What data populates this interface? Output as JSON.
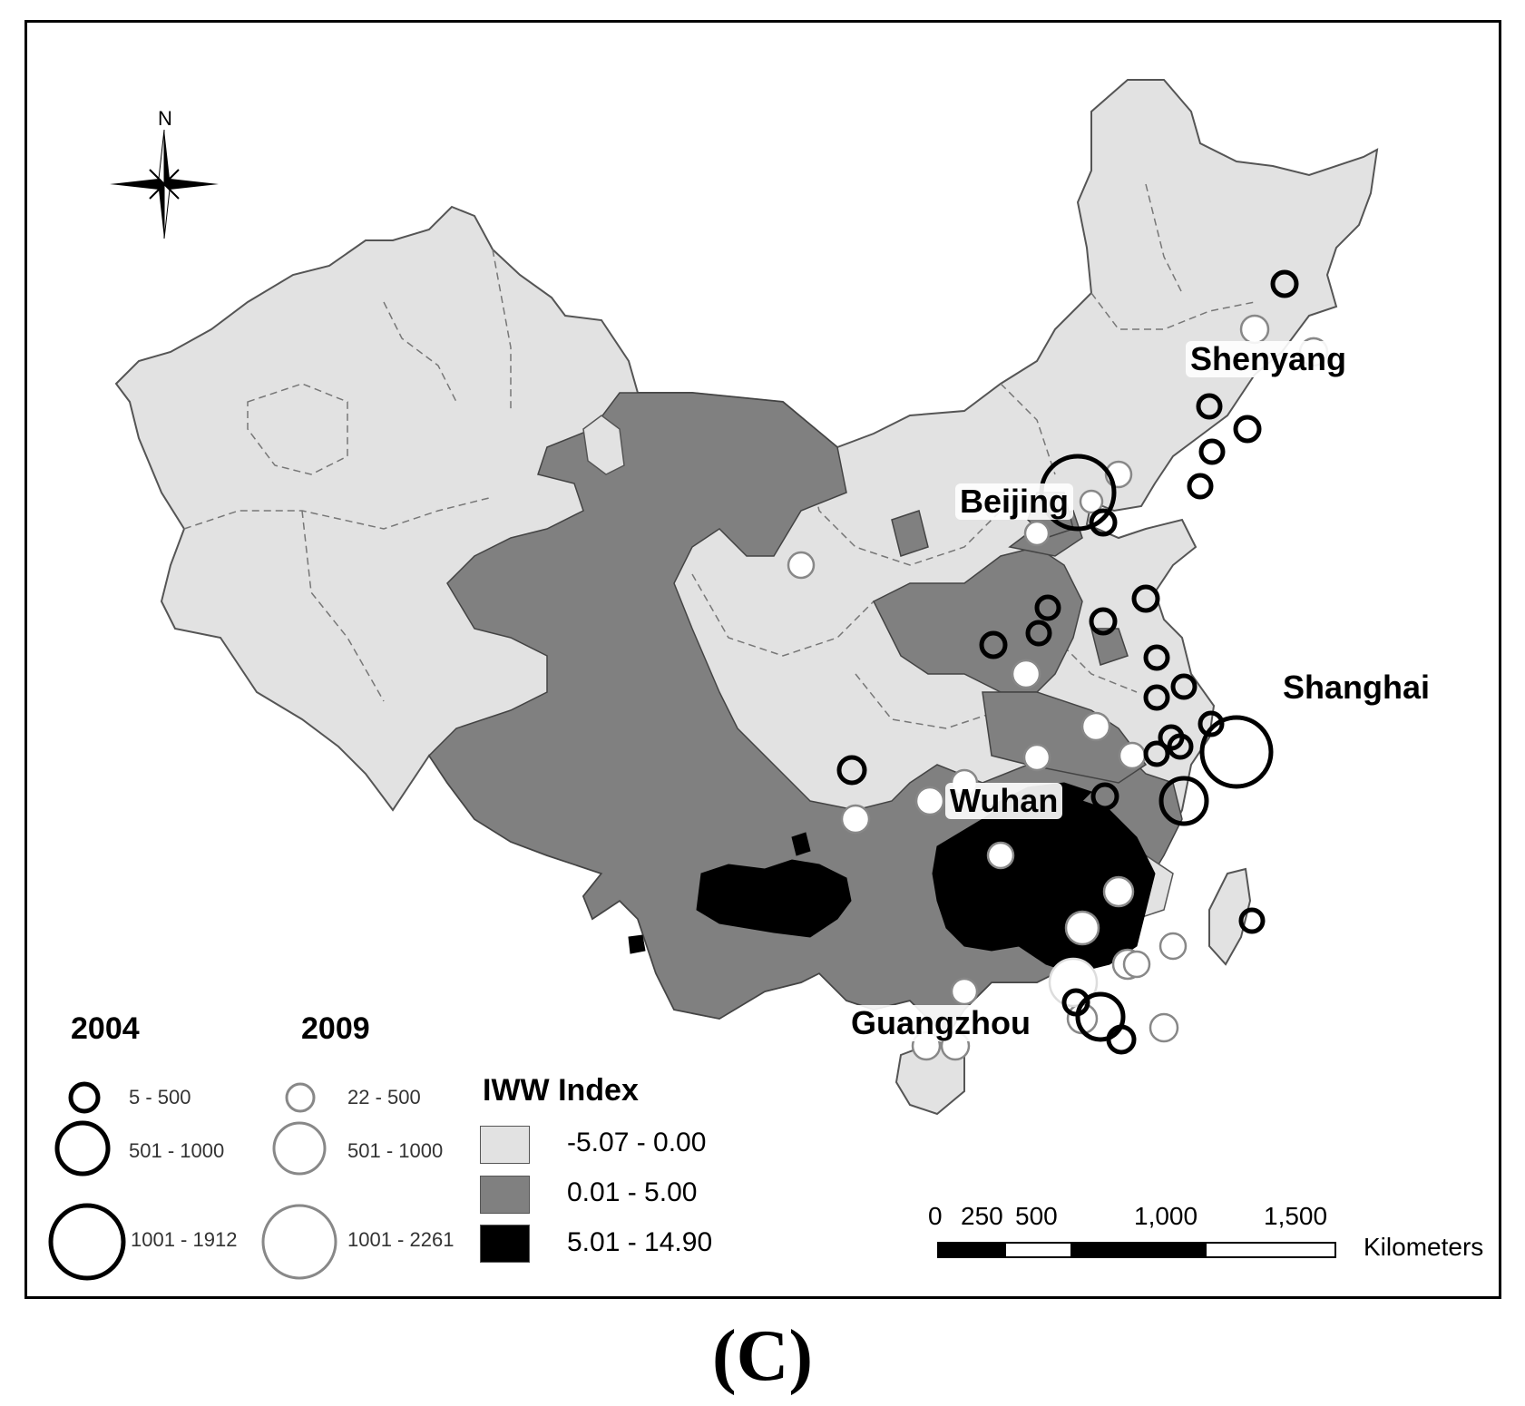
{
  "panel_label": "(C)",
  "compass": {
    "north_label": "N"
  },
  "cities": {
    "shenyang": "Shenyang",
    "beijing": "Beijing",
    "shanghai": "Shanghai",
    "wuhan": "Wuhan",
    "guangzhou": "Guangzhou"
  },
  "legend_2004": {
    "year": "2004",
    "classes": [
      "5 - 500",
      "501 - 1000",
      "1001 - 1912"
    ]
  },
  "legend_2009": {
    "year": "2009",
    "classes": [
      "22 - 500",
      "501 - 1000",
      "1001 - 2261"
    ]
  },
  "iww_legend": {
    "title": "IWW Index",
    "classes": [
      {
        "label": "-5.07 - 0.00",
        "color": "#e2e2e2"
      },
      {
        "label": "0.01 - 5.00",
        "color": "#808080"
      },
      {
        "label": "5.01 - 14.90",
        "color": "#000000"
      }
    ]
  },
  "scale_bar": {
    "ticks": [
      "0",
      "250",
      "500",
      "1,000",
      "1,500"
    ],
    "unit": "Kilometers"
  },
  "colors": {
    "low_class": "#e2e2e2",
    "mid_class": "#808080",
    "high_class": "#000000",
    "circle_2004_stroke": "#000000",
    "circle_2009_fill": "#ffffff"
  }
}
